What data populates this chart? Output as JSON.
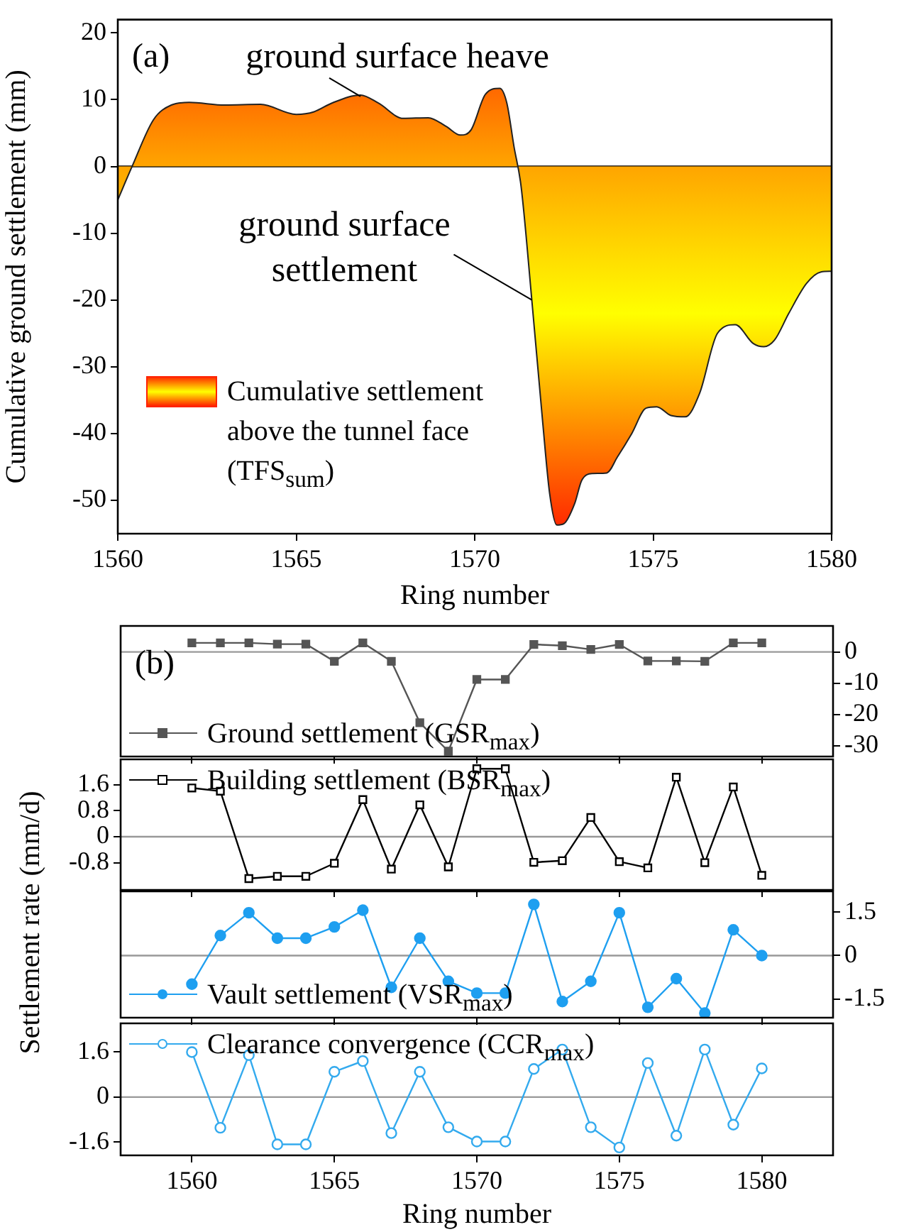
{
  "chart_data": [
    {
      "type": "area",
      "annotations": [
        "(a)",
        {
          "text": "ground surface heave",
          "x": 1566.8,
          "y": 10.5
        },
        {
          "text": "ground surface settlement",
          "x": 1571.6,
          "y": -20
        }
      ],
      "xlabel": "Ring number",
      "ylabel": "Cumulative ground settlement (mm)",
      "x": [
        1560,
        1560.4,
        1561,
        1561.5,
        1562,
        1563,
        1564,
        1565,
        1565.5,
        1566,
        1566.8,
        1567.3,
        1568,
        1568.7,
        1569.2,
        1569.6,
        1569.9,
        1570.3,
        1570.7,
        1570.9,
        1571.1,
        1571.3,
        1571.6,
        1571.9,
        1572.1,
        1572.3,
        1572.5,
        1572.8,
        1573,
        1573.3,
        1573.7,
        1574,
        1574.4,
        1574.8,
        1575.1,
        1575.5,
        1575.9,
        1576.3,
        1576.8,
        1577.3,
        1577.8,
        1578.1,
        1578.4,
        1578.8,
        1579.3,
        1579.7,
        1580
      ],
      "series": [
        {
          "name": "Cumulative settlement above the tunnel face (TFS$_{sum}$)",
          "color": "#ffa500",
          "values": [
            -5,
            0,
            7,
            9.2,
            9.6,
            9.2,
            9.3,
            7.8,
            8.2,
            9.5,
            10.7,
            9.5,
            7.2,
            7.3,
            6,
            4.7,
            5.5,
            10.8,
            11.7,
            9.5,
            3,
            -3,
            -20,
            -38,
            -49,
            -53.7,
            -53.5,
            -50.5,
            -47,
            -46,
            -45.9,
            -43.5,
            -40,
            -36.2,
            -36,
            -37.3,
            -37.5,
            -34,
            -25,
            -23.7,
            -26.5,
            -27,
            -26,
            -22,
            -17.5,
            -15.8,
            -15.7
          ]
        }
      ],
      "xlim": [
        1560,
        1580
      ],
      "xticks": [
        1560,
        1565,
        1570,
        1575,
        1580
      ],
      "ylim": [
        -55,
        22
      ],
      "yticks": [
        -50,
        -40,
        -30,
        -20,
        -10,
        0,
        10,
        20
      ],
      "ref_lines": [
        {
          "axis": "y",
          "value": 0,
          "color": "#000000"
        }
      ],
      "legend": "left",
      "marker": "none"
    },
    {
      "type": "line",
      "annotations": [
        "(b)"
      ],
      "x": [
        1560,
        1561,
        1562,
        1563,
        1564,
        1565,
        1566,
        1567,
        1568,
        1569,
        1570,
        1571,
        1572,
        1573,
        1574,
        1575,
        1576,
        1577,
        1578,
        1579,
        1580
      ],
      "series": [
        {
          "name": "Ground settlement (GSR$_{max}$)",
          "color": "#555555",
          "axis": "y2",
          "values": [
            2.9,
            2.9,
            2.9,
            2.5,
            2.5,
            -3,
            2.9,
            -3,
            -22.6,
            -31.7,
            -8.8,
            -8.8,
            2.4,
            2,
            0.8,
            2.4,
            -2.9,
            -2.9,
            -3,
            2.9,
            2.9
          ]
        }
      ],
      "xlim": [
        1557.5,
        1582.5
      ],
      "xticks": [
        1560,
        1565,
        1570,
        1575,
        1580
      ],
      "y2lim": [
        -33.4,
        8.3
      ],
      "y2ticks": [
        -30,
        -20,
        -10,
        0
      ],
      "tick_labels": "y",
      "ref_lines": [
        {
          "axis": "y2",
          "value": 0,
          "color": "#999999"
        }
      ],
      "legend": "bottom left",
      "marker": "square"
    },
    {
      "type": "line",
      "ylabel": "Settlement rate (mm/d)",
      "x": [
        1560,
        1561,
        1562,
        1563,
        1564,
        1565,
        1566,
        1567,
        1568,
        1569,
        1570,
        1571,
        1572,
        1573,
        1574,
        1575,
        1576,
        1577,
        1578,
        1579,
        1580
      ],
      "series": [
        {
          "name": "Building settlement (BSR$_{max}$)",
          "color": "#000000",
          "values": [
            1.5,
            1.4,
            -1.29,
            -1.22,
            -1.22,
            -0.82,
            1.14,
            -1,
            0.98,
            -0.93,
            2.09,
            2.09,
            -0.79,
            -0.74,
            0.59,
            -0.77,
            -0.96,
            1.83,
            -0.8,
            1.53,
            -1.19
          ]
        }
      ],
      "xlim": [
        1557.5,
        1582.5
      ],
      "xticks": [
        1560,
        1565,
        1570,
        1575,
        1580
      ],
      "ylim": [
        -1.64,
        2.38
      ],
      "yticks": [
        -0.8,
        0,
        0.8,
        1.6
      ],
      "tick_labels": "y",
      "ref_lines": [
        {
          "axis": "y",
          "value": 0,
          "color": "#999999"
        }
      ],
      "legend": "top left",
      "marker": "square"
    },
    {
      "type": "line",
      "x": [
        1560,
        1561,
        1562,
        1563,
        1564,
        1565,
        1566,
        1567,
        1568,
        1569,
        1570,
        1571,
        1572,
        1573,
        1574,
        1575,
        1576,
        1577,
        1578,
        1579,
        1580
      ],
      "series": [
        {
          "name": "Vault settlement (VSR$_{max}$)",
          "color": "#1e9ff0",
          "axis": "y2",
          "values": [
            -0.99,
            0.69,
            1.48,
            0.6,
            0.6,
            0.99,
            1.57,
            -1.1,
            0.6,
            -0.89,
            -1.3,
            -1.3,
            1.77,
            -1.59,
            -0.89,
            1.48,
            -1.79,
            -0.8,
            -1.99,
            0.89,
            0
          ]
        }
      ],
      "xlim": [
        1557.5,
        1582.5
      ],
      "xticks": [
        1560,
        1565,
        1570,
        1575,
        1580
      ],
      "y2lim": [
        -2.15,
        2.22
      ],
      "y2ticks": [
        -1.5,
        0,
        1.5
      ],
      "tick_labels": "y",
      "ref_lines": [
        {
          "axis": "y2",
          "value": 0,
          "color": "#999999"
        }
      ],
      "legend": "bottom left",
      "marker": "circle"
    },
    {
      "type": "line",
      "xlabel": "Ring number",
      "x": [
        1560,
        1561,
        1562,
        1563,
        1564,
        1565,
        1566,
        1567,
        1568,
        1569,
        1570,
        1571,
        1572,
        1573,
        1574,
        1575,
        1576,
        1577,
        1578,
        1579,
        1580
      ],
      "series": [
        {
          "name": "Clearance convergence (CCR$_{max}$)",
          "color": "#33aaee",
          "values": [
            1.6,
            -1.09,
            1.49,
            -1.68,
            -1.68,
            0.9,
            1.28,
            -1.28,
            0.9,
            -1.07,
            -1.58,
            -1.58,
            1,
            1.69,
            -1.07,
            -1.79,
            1.21,
            -1.37,
            1.69,
            -0.98,
            1.02
          ]
        }
      ],
      "xlim": [
        1557.5,
        1582.5
      ],
      "xticks": [
        1560,
        1565,
        1570,
        1575,
        1580
      ],
      "ylim": [
        -2.07,
        2.62
      ],
      "yticks": [
        -1.6,
        0,
        1.6
      ],
      "ref_lines": [
        {
          "axis": "y",
          "value": 0,
          "color": "#999999"
        }
      ],
      "legend": "top left",
      "marker": "circle"
    }
  ]
}
